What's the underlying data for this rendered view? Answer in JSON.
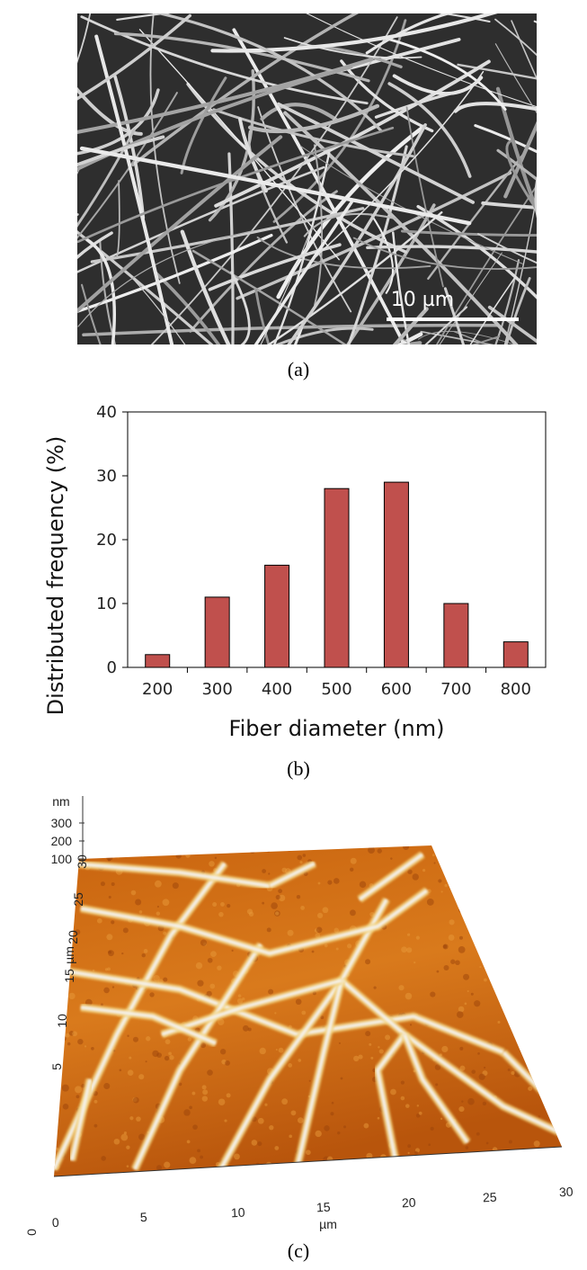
{
  "chart_data": {
    "type": "bar",
    "categories": [
      "200",
      "300",
      "400",
      "500",
      "600",
      "700",
      "800"
    ],
    "values": [
      2,
      11,
      16,
      28,
      29,
      10,
      4
    ],
    "color": "#c0504d",
    "ylim": [
      0,
      40
    ],
    "yticks": [
      0,
      10,
      20,
      30,
      40
    ],
    "x_label": "Fiber diameter (nm)",
    "y_label": "Distributed frequency (%)",
    "grid": false
  },
  "figure": {
    "captions": [
      "(a)",
      "(b)",
      "(c)"
    ],
    "sem_scale_label": "10 µm",
    "afm": {
      "z_unit": "nm",
      "z_ticks": [
        "300",
        "200",
        "100"
      ],
      "y_ticks": [
        "30",
        "25",
        "20",
        "15",
        "10",
        "5",
        "0"
      ],
      "y_unit": "µm",
      "x_ticks": [
        "0",
        "5",
        "10",
        "15",
        "20",
        "25",
        "30"
      ],
      "x_unit": "µm"
    }
  }
}
